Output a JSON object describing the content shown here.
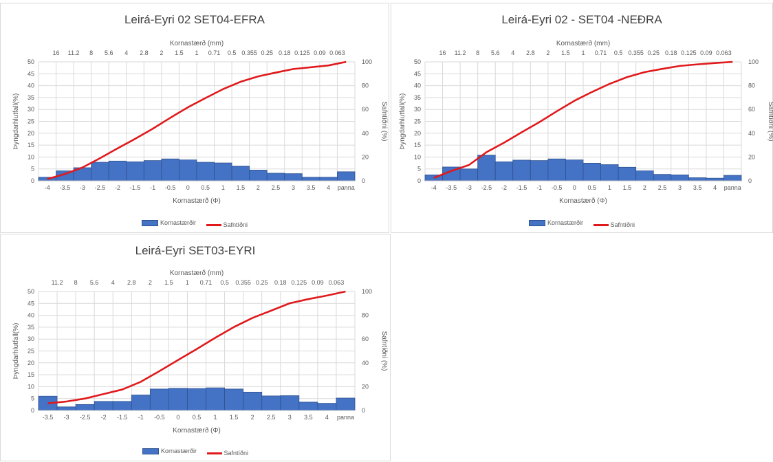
{
  "colors": {
    "bars": "#4472c4",
    "bar_edge": "#2f528f",
    "line": "#e0191c",
    "grid": "#d9d9d9",
    "text": "#595959"
  },
  "legend": {
    "bars": "Kornastærðir",
    "line": "Safntíðni"
  },
  "chart_data": [
    {
      "type": "bar",
      "title": "Leirá-Eyri 02 SET04-EFRA",
      "xlabel": "Kornastærð (Φ)",
      "x2label": "Kornastærð (mm)",
      "ylabel": "Þyngdarhlutfall(%)",
      "y2label": "Safntíðni (%)",
      "ylim": [
        0,
        50
      ],
      "y2lim": [
        0,
        100
      ],
      "yticks": [
        "0",
        "5",
        "10",
        "15",
        "20",
        "25",
        "30",
        "35",
        "40",
        "45",
        "50"
      ],
      "y2ticks": [
        "0",
        "20",
        "40",
        "60",
        "80",
        "100"
      ],
      "categories": [
        "-4",
        "-3.5",
        "-3",
        "-2.5",
        "-2",
        "-1.5",
        "-1",
        "-0.5",
        "0",
        "0.5",
        "1",
        "1.5",
        "2",
        "2.5",
        "3",
        "3.5",
        "4",
        "panna"
      ],
      "mm_ticks": [
        "16",
        "11.2",
        "8",
        "5.6",
        "4",
        "2.8",
        "2",
        "1.5",
        "1",
        "0.71",
        "0.5",
        "0.355",
        "0.25",
        "0.18",
        "0.125",
        "0.09",
        "0.063"
      ],
      "series": [
        {
          "name": "Kornastærðir",
          "values": [
            1.5,
            4.2,
            5.5,
            7.8,
            8.3,
            8.0,
            8.5,
            9.2,
            8.8,
            7.8,
            7.5,
            6.2,
            4.5,
            3.2,
            3.0,
            1.5,
            1.5,
            3.8
          ]
        },
        {
          "name": "Safntíðni",
          "values": [
            1.5,
            5.7,
            11.2,
            19,
            27.3,
            35.3,
            43.8,
            53,
            61.8,
            69.6,
            77.1,
            83.3,
            87.8,
            91,
            94,
            95.5,
            97,
            100
          ]
        }
      ]
    },
    {
      "type": "bar",
      "title": "Leirá-Eyri 02 - SET04 -NEÐRA",
      "xlabel": "Kornastærð (Φ)",
      "x2label": "Kornastærð (mm)",
      "ylabel": "Þyngdarhlutfall(%)",
      "y2label": "Safntíðni (%)",
      "ylim": [
        0,
        50
      ],
      "y2lim": [
        0,
        100
      ],
      "yticks": [
        "0",
        "5",
        "10",
        "15",
        "20",
        "25",
        "30",
        "35",
        "40",
        "45",
        "50"
      ],
      "y2ticks": [
        "0",
        "20",
        "40",
        "60",
        "80",
        "100"
      ],
      "categories": [
        "-4",
        "-3.5",
        "-3",
        "-2.5",
        "-2",
        "-1.5",
        "-1",
        "-0.5",
        "0",
        "0.5",
        "1",
        "1.5",
        "2",
        "2.5",
        "3",
        "3.5",
        "4",
        "panna"
      ],
      "mm_ticks": [
        "16",
        "11.2",
        "8",
        "5.6",
        "4",
        "2.8",
        "2",
        "1.5",
        "1",
        "0.71",
        "0.5",
        "0.355",
        "0.25",
        "0.18",
        "0.125",
        "0.09",
        "0.063"
      ],
      "series": [
        {
          "name": "Kornastærðir",
          "values": [
            2.5,
            5.8,
            5.0,
            10.8,
            8.0,
            8.7,
            8.5,
            9.2,
            8.8,
            7.4,
            6.8,
            5.7,
            4.2,
            2.7,
            2.5,
            1.3,
            1.1,
            2.3
          ]
        },
        {
          "name": "Safntíðni",
          "values": [
            2.5,
            8.3,
            13.3,
            24.1,
            32.1,
            40.8,
            49.3,
            58.5,
            67.3,
            74.7,
            81.5,
            87.2,
            91.4,
            94.1,
            96.6,
            97.9,
            99,
            100
          ]
        }
      ]
    },
    {
      "type": "bar",
      "title": "Leirá-Eyri SET03-EYRI",
      "xlabel": "Kornastærð (Φ)",
      "x2label": "Kornastærð (mm)",
      "ylabel": "Þyngdarhlutfall(%)",
      "y2label": "Safntíðni (%)",
      "ylim": [
        0,
        50
      ],
      "y2lim": [
        0,
        100
      ],
      "yticks": [
        "0",
        "5",
        "10",
        "15",
        "20",
        "25",
        "30",
        "35",
        "40",
        "45",
        "50"
      ],
      "y2ticks": [
        "0",
        "20",
        "40",
        "60",
        "80",
        "100"
      ],
      "categories": [
        "-3.5",
        "-3",
        "-2.5",
        "-2",
        "-1.5",
        "-1",
        "-0.5",
        "0",
        "0.5",
        "1",
        "1.5",
        "2",
        "2.5",
        "3",
        "3.5",
        "4",
        "panna"
      ],
      "mm_ticks": [
        "11.2",
        "8",
        "5.6",
        "4",
        "2.8",
        "2",
        "1.5",
        "1",
        "0.71",
        "0.5",
        "0.355",
        "0.25",
        "0.18",
        "0.125",
        "0.09",
        "0.063"
      ],
      "series": [
        {
          "name": "Kornastærðir",
          "values": [
            6.0,
            1.5,
            2.5,
            3.8,
            3.8,
            6.5,
            9.0,
            9.3,
            9.2,
            9.5,
            9.0,
            7.7,
            6.1,
            6.2,
            3.5,
            3.0,
            5.2
          ]
        },
        {
          "name": "Safntíðni",
          "values": [
            6,
            7.5,
            10,
            13.8,
            17.6,
            24.1,
            33.1,
            42.4,
            51.6,
            61.1,
            70.1,
            77.8,
            83.9,
            90.1,
            93.6,
            96.6,
            100
          ]
        }
      ]
    }
  ]
}
